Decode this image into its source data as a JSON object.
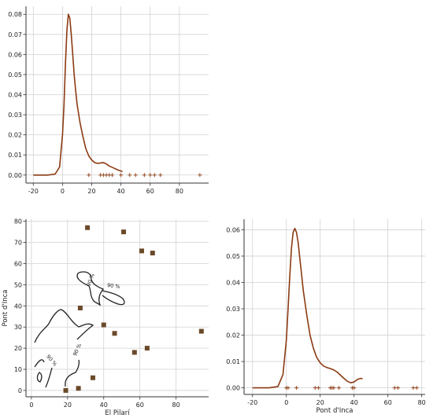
{
  "chart_data": [
    {
      "id": "top-left",
      "type": "line",
      "title": "",
      "xlabel": "",
      "ylabel": "",
      "xlim": [
        -25,
        100
      ],
      "ylim": [
        -0.004,
        0.084
      ],
      "xticks": [
        -20,
        0,
        20,
        40,
        60,
        80
      ],
      "yticks": [
        0.0,
        0.01,
        0.02,
        0.03,
        0.04,
        0.05,
        0.06,
        0.07,
        0.08
      ],
      "ytick_labels": [
        "0.00",
        "0.01",
        "0.02",
        "0.03",
        "0.04",
        "0.05",
        "0.06",
        "0.07",
        "0.08"
      ],
      "grid": true,
      "series": [
        {
          "kind": "density",
          "color": "#8B3A12",
          "x": [
            -20,
            -10,
            -5,
            -2,
            0,
            1,
            2,
            3,
            4,
            5,
            6,
            7,
            8,
            9,
            10,
            12,
            14,
            16,
            18,
            20,
            22,
            24,
            26,
            28,
            30,
            32,
            35,
            38,
            41
          ],
          "y": [
            0.0,
            0.0,
            0.0005,
            0.004,
            0.02,
            0.035,
            0.055,
            0.072,
            0.08,
            0.078,
            0.07,
            0.06,
            0.05,
            0.042,
            0.035,
            0.026,
            0.019,
            0.013,
            0.0095,
            0.0075,
            0.0062,
            0.0058,
            0.006,
            0.0062,
            0.0055,
            0.0045,
            0.0035,
            0.0025,
            0.0017
          ]
        },
        {
          "kind": "rug",
          "color": "#8B3A12",
          "x": [
            18,
            26,
            28,
            30,
            32,
            34,
            40,
            46,
            50,
            56,
            60,
            63,
            67,
            94
          ]
        }
      ]
    },
    {
      "id": "bottom-left",
      "type": "scatter",
      "title": "",
      "xlabel": "El Pilarí",
      "ylabel": "Pont d'Inca",
      "xlim": [
        -3,
        98
      ],
      "ylim": [
        -3,
        81
      ],
      "xticks": [
        0,
        20,
        40,
        60,
        80
      ],
      "yticks": [
        0,
        10,
        20,
        30,
        40,
        50,
        60,
        70,
        80
      ],
      "grid": true,
      "series": [
        {
          "kind": "points",
          "color": "#6B4A2A",
          "x": [
            19,
            26,
            31,
            34,
            27,
            40,
            46,
            51,
            57,
            61,
            64,
            67,
            94
          ],
          "y": [
            0,
            1,
            77,
            6,
            39,
            31,
            27,
            75,
            18,
            66,
            20,
            65,
            28
          ]
        }
      ],
      "annotations": [
        {
          "text": "90 %",
          "x": 26,
          "y": 50
        },
        {
          "text": "90 %",
          "x": 45,
          "y": 48
        },
        {
          "text": "90 %",
          "x": 24,
          "y": 18
        },
        {
          "text": "90 %",
          "x": 10,
          "y": 12
        }
      ]
    },
    {
      "id": "bottom-right",
      "type": "line",
      "title": "",
      "xlabel": "Pont d'Inca",
      "ylabel": "",
      "xlim": [
        -25,
        82
      ],
      "ylim": [
        -0.0025,
        0.064
      ],
      "xticks": [
        -20,
        0,
        20,
        40,
        60,
        80
      ],
      "yticks": [
        0.0,
        0.01,
        0.02,
        0.03,
        0.04,
        0.05,
        0.06
      ],
      "ytick_labels": [
        "0.00",
        "0.01",
        "0.02",
        "0.03",
        "0.04",
        "0.05",
        "0.06"
      ],
      "grid": true,
      "series": [
        {
          "kind": "density",
          "color": "#8B3A12",
          "x": [
            -20,
            -10,
            -5,
            -2,
            0,
            1,
            2,
            3,
            4,
            5,
            6,
            7,
            8,
            9,
            10,
            12,
            14,
            16,
            18,
            20,
            22,
            24,
            26,
            28,
            30,
            32,
            34,
            36,
            38,
            40,
            42,
            44,
            45
          ],
          "y": [
            0.0,
            0.0,
            0.0005,
            0.005,
            0.018,
            0.03,
            0.042,
            0.053,
            0.059,
            0.0605,
            0.059,
            0.055,
            0.049,
            0.043,
            0.037,
            0.028,
            0.02,
            0.015,
            0.0115,
            0.0095,
            0.0083,
            0.0077,
            0.0073,
            0.0068,
            0.006,
            0.0048,
            0.0036,
            0.0025,
            0.0019,
            0.0022,
            0.0032,
            0.0036,
            0.0034
          ]
        },
        {
          "kind": "rug",
          "color": "#8B3A12",
          "x": [
            0,
            1,
            6,
            17,
            19,
            26,
            27,
            28,
            31,
            39,
            40,
            64,
            66,
            75,
            77
          ]
        }
      ]
    }
  ]
}
